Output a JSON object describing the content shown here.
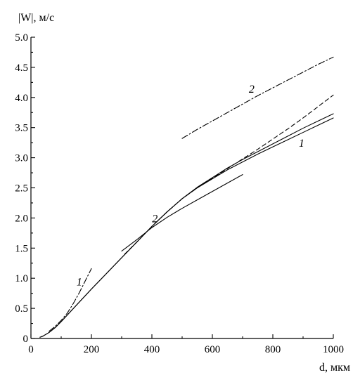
{
  "chart_data": {
    "type": "line",
    "ylabel": "|W|, м/с",
    "xlabel": "d, мкм",
    "xlim": [
      0,
      1000
    ],
    "ylim": [
      0,
      5.0
    ],
    "x_ticks": [
      0,
      200,
      400,
      600,
      800,
      1000
    ],
    "y_ticks": [
      0,
      0.5,
      1.0,
      1.5,
      2.0,
      2.5,
      3.0,
      3.5,
      4.0,
      4.5,
      5.0
    ],
    "y_tick_labels": [
      "0",
      "0.5",
      "1.0",
      "1.5",
      "2.0",
      "2.5",
      "3.0",
      "3.5",
      "4.0",
      "4.5",
      "5.0"
    ],
    "x_tick_labels": [
      "0",
      "200",
      "400",
      "600",
      "800",
      "1000"
    ],
    "grid": false,
    "series": [
      {
        "style": "solid",
        "x": [
          30,
          40,
          60,
          80,
          100,
          150,
          200,
          250,
          300,
          350,
          400,
          450,
          500,
          550,
          600,
          650,
          700,
          750,
          800,
          850,
          900,
          950,
          1000
        ],
        "y": [
          0.02,
          0.04,
          0.1,
          0.18,
          0.28,
          0.55,
          0.82,
          1.08,
          1.34,
          1.6,
          1.86,
          2.1,
          2.32,
          2.5,
          2.65,
          2.8,
          2.93,
          3.06,
          3.18,
          3.3,
          3.42,
          3.54,
          3.66
        ]
      },
      {
        "style": "solid",
        "x": [
          30,
          40,
          60,
          80,
          100,
          150,
          200,
          250,
          300,
          350,
          400,
          450,
          500,
          550,
          600,
          650,
          700,
          750,
          800,
          850,
          900,
          950,
          1000
        ],
        "y": [
          0.02,
          0.04,
          0.1,
          0.18,
          0.28,
          0.55,
          0.82,
          1.08,
          1.34,
          1.6,
          1.86,
          2.1,
          2.32,
          2.51,
          2.67,
          2.83,
          2.97,
          3.1,
          3.23,
          3.36,
          3.49,
          3.61,
          3.73
        ]
      },
      {
        "style": "solid",
        "x": [
          300,
          350,
          400,
          450,
          500,
          550,
          600,
          650,
          700
        ],
        "y": [
          1.45,
          1.64,
          1.84,
          2.01,
          2.16,
          2.3,
          2.44,
          2.58,
          2.72
        ]
      },
      {
        "style": "dashed",
        "x": [
          310,
          350,
          400,
          450,
          500,
          550,
          600,
          650,
          700,
          750,
          800,
          850,
          900,
          950,
          1000
        ],
        "y": [
          1.4,
          1.6,
          1.86,
          2.1,
          2.32,
          2.5,
          2.66,
          2.82,
          2.98,
          3.14,
          3.31,
          3.48,
          3.66,
          3.85,
          4.04
        ]
      },
      {
        "style": "dashdot",
        "x": [
          60,
          80,
          100,
          120,
          140,
          160,
          180,
          200
        ],
        "y": [
          0.12,
          0.2,
          0.3,
          0.42,
          0.58,
          0.76,
          0.96,
          1.16
        ]
      },
      {
        "style": "dashdot",
        "x": [
          500,
          550,
          600,
          650,
          700,
          750,
          800,
          850,
          900,
          950,
          1000
        ],
        "y": [
          3.32,
          3.47,
          3.61,
          3.75,
          3.89,
          4.03,
          4.16,
          4.29,
          4.42,
          4.55,
          4.67
        ]
      }
    ],
    "annotations": [
      {
        "text": "1",
        "x": 160,
        "y": 0.88
      },
      {
        "text": "1",
        "x": 895,
        "y": 3.18
      },
      {
        "text": "2",
        "x": 410,
        "y": 1.93
      },
      {
        "text": "2",
        "x": 730,
        "y": 4.08
      }
    ]
  }
}
